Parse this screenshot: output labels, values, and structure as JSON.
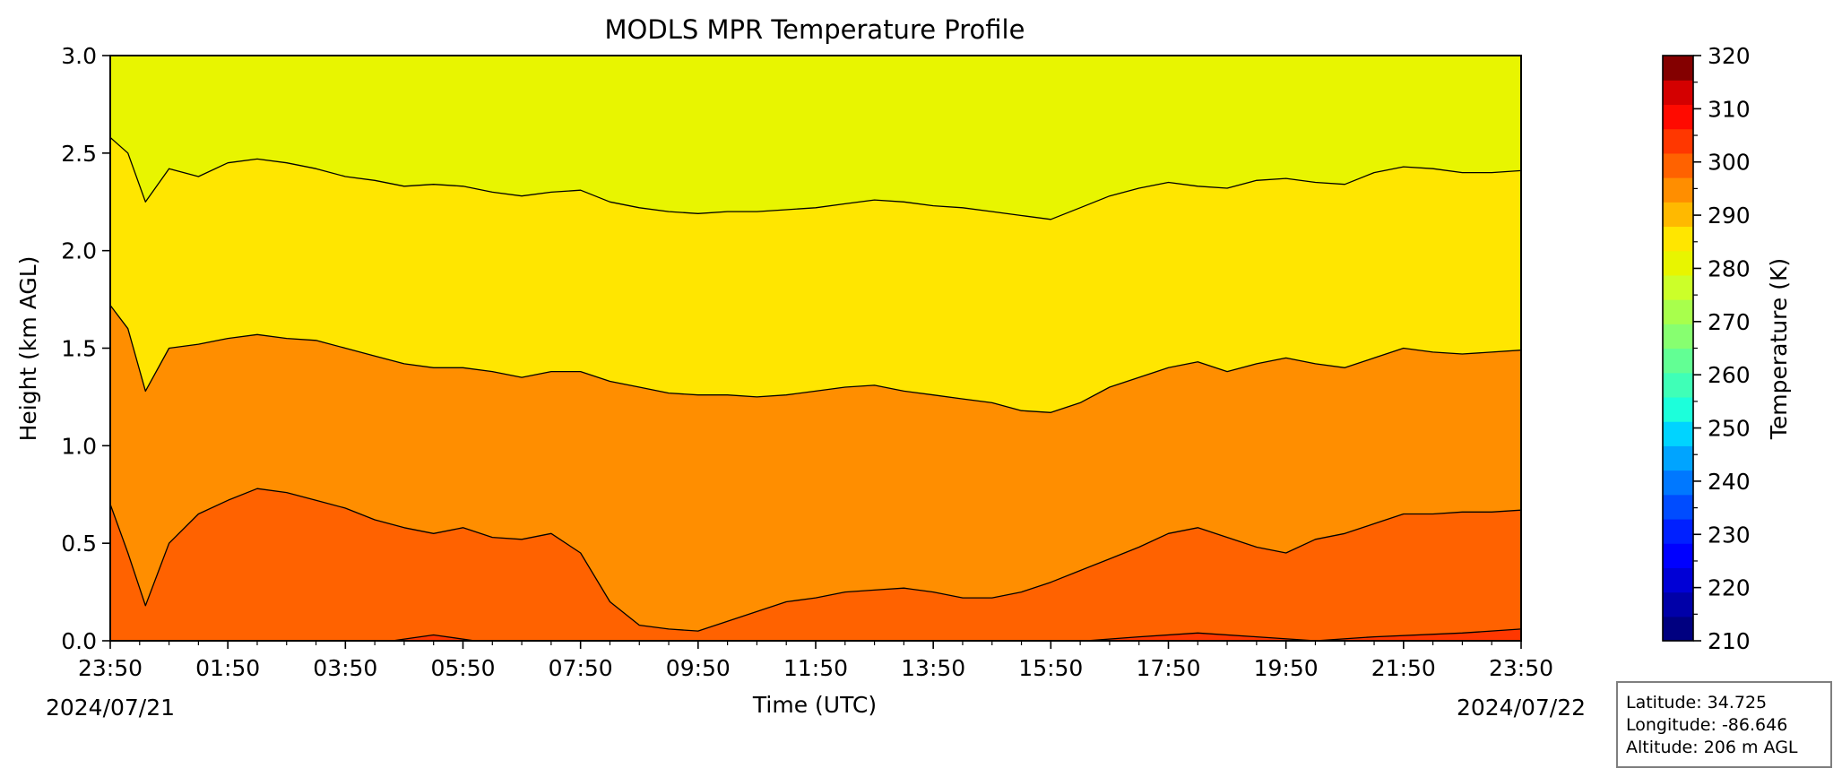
{
  "chart_data": {
    "type": "heatmap",
    "title": "MODLS MPR Temperature Profile",
    "xlabel": "Time (UTC)",
    "ylabel": "Height (km AGL)",
    "x_ticks": [
      "23:50",
      "01:50",
      "03:50",
      "05:50",
      "07:50",
      "09:50",
      "11:50",
      "13:50",
      "15:50",
      "17:50",
      "19:50",
      "21:50",
      "23:50"
    ],
    "x_tick_hours": [
      0,
      2,
      4,
      6,
      8,
      10,
      12,
      14,
      16,
      18,
      20,
      22,
      24
    ],
    "start_date": "2024/07/21",
    "end_date": "2024/07/22",
    "y_ticks": [
      0.0,
      0.5,
      1.0,
      1.5,
      2.0,
      2.5,
      3.0
    ],
    "y_tick_labels": [
      "0.0",
      "0.5",
      "1.0",
      "1.5",
      "2.0",
      "2.5",
      "3.0"
    ],
    "xlim_hours": [
      0,
      24
    ],
    "ylim": [
      0.0,
      3.0
    ],
    "contour_interval_K": 5,
    "contours": [
      {
        "level_K": 300,
        "hours": [
          0,
          0.3,
          0.6,
          1,
          1.5,
          2,
          2.5,
          3,
          3.5,
          4,
          4.5,
          5,
          5.5,
          6,
          6.5,
          7,
          7.5,
          8,
          8.5,
          9,
          9.5,
          10,
          10.5,
          11,
          11.5,
          12,
          12.5,
          13,
          13.5,
          14,
          14.5,
          15,
          15.5,
          16,
          16.5,
          17,
          17.5,
          18,
          18.5,
          19,
          19.5,
          20,
          20.5,
          21,
          21.5,
          22,
          22.5,
          23,
          23.5,
          24
        ],
        "height_km": [
          0.7,
          0.45,
          0.18,
          0.5,
          0.65,
          0.72,
          0.78,
          0.76,
          0.72,
          0.68,
          0.62,
          0.58,
          0.55,
          0.58,
          0.53,
          0.52,
          0.55,
          0.45,
          0.2,
          0.08,
          0.06,
          0.05,
          0.1,
          0.15,
          0.2,
          0.22,
          0.25,
          0.26,
          0.27,
          0.25,
          0.22,
          0.22,
          0.25,
          0.3,
          0.36,
          0.42,
          0.48,
          0.55,
          0.58,
          0.53,
          0.48,
          0.45,
          0.52,
          0.55,
          0.6,
          0.65,
          0.65,
          0.66,
          0.66,
          0.67
        ]
      },
      {
        "level_K": 295,
        "hours": [
          0,
          0.3,
          0.6,
          1,
          1.5,
          2,
          2.5,
          3,
          3.5,
          4,
          4.5,
          5,
          5.5,
          6,
          6.5,
          7,
          7.5,
          8,
          8.5,
          9,
          9.5,
          10,
          10.5,
          11,
          11.5,
          12,
          12.5,
          13,
          13.5,
          14,
          14.5,
          15,
          15.5,
          16,
          16.5,
          17,
          17.5,
          18,
          18.5,
          19,
          19.5,
          20,
          20.5,
          21,
          21.5,
          22,
          22.5,
          23,
          23.5,
          24
        ],
        "height_km": [
          1.72,
          1.6,
          1.28,
          1.5,
          1.52,
          1.55,
          1.57,
          1.55,
          1.54,
          1.5,
          1.46,
          1.42,
          1.4,
          1.4,
          1.38,
          1.35,
          1.38,
          1.38,
          1.33,
          1.3,
          1.27,
          1.26,
          1.26,
          1.25,
          1.26,
          1.28,
          1.3,
          1.31,
          1.28,
          1.26,
          1.24,
          1.22,
          1.18,
          1.17,
          1.22,
          1.3,
          1.35,
          1.4,
          1.43,
          1.38,
          1.42,
          1.45,
          1.42,
          1.4,
          1.45,
          1.5,
          1.48,
          1.47,
          1.48,
          1.49
        ]
      },
      {
        "level_K": 290,
        "hours": [
          0,
          0.3,
          0.6,
          1,
          1.5,
          2,
          2.5,
          3,
          3.5,
          4,
          4.5,
          5,
          5.5,
          6,
          6.5,
          7,
          7.5,
          8,
          8.5,
          9,
          9.5,
          10,
          10.5,
          11,
          11.5,
          12,
          12.5,
          13,
          13.5,
          14,
          14.5,
          15,
          15.5,
          16,
          16.5,
          17,
          17.5,
          18,
          18.5,
          19,
          19.5,
          20,
          20.5,
          21,
          21.5,
          22,
          22.5,
          23,
          23.5,
          24
        ],
        "height_km": [
          2.58,
          2.5,
          2.25,
          2.42,
          2.38,
          2.45,
          2.47,
          2.45,
          2.42,
          2.38,
          2.36,
          2.33,
          2.34,
          2.33,
          2.3,
          2.28,
          2.3,
          2.31,
          2.25,
          2.22,
          2.2,
          2.19,
          2.2,
          2.2,
          2.21,
          2.22,
          2.24,
          2.26,
          2.25,
          2.23,
          2.22,
          2.2,
          2.18,
          2.16,
          2.22,
          2.28,
          2.32,
          2.35,
          2.33,
          2.32,
          2.36,
          2.37,
          2.35,
          2.34,
          2.4,
          2.43,
          2.42,
          2.4,
          2.4,
          2.41
        ]
      },
      {
        "level_K": 305,
        "hours": [
          4.8,
          5.5,
          6.2,
          16.6,
          17.5,
          18.5,
          19.5,
          20.5,
          21.5,
          23,
          24
        ],
        "height_km": [
          0.0,
          0.03,
          0.0,
          0.0,
          0.02,
          0.04,
          0.02,
          0.0,
          0.02,
          0.04,
          0.06
        ]
      }
    ],
    "colorbar": {
      "label": "Temperature (K)",
      "vmin": 210,
      "vmax": 320,
      "ticks": [
        210,
        220,
        230,
        240,
        250,
        260,
        270,
        280,
        290,
        300,
        310,
        320
      ],
      "colors": [
        "#000080",
        "#0000a8",
        "#0000d6",
        "#0000ff",
        "#0020ff",
        "#004cff",
        "#0078ff",
        "#00a4ff",
        "#00d4ff",
        "#1cffdb",
        "#3fffb7",
        "#62ff94",
        "#87ff70",
        "#a8ff4c",
        "#ccff29",
        "#e8f500",
        "#ffe600",
        "#ffb900",
        "#ff8e00",
        "#ff6200",
        "#ff3700",
        "#ff0a00",
        "#d40000",
        "#840000"
      ]
    }
  },
  "info": {
    "latitude": "Latitude: 34.725",
    "longitude": "Longitude: -86.646",
    "altitude": "Altitude: 206 m AGL"
  }
}
